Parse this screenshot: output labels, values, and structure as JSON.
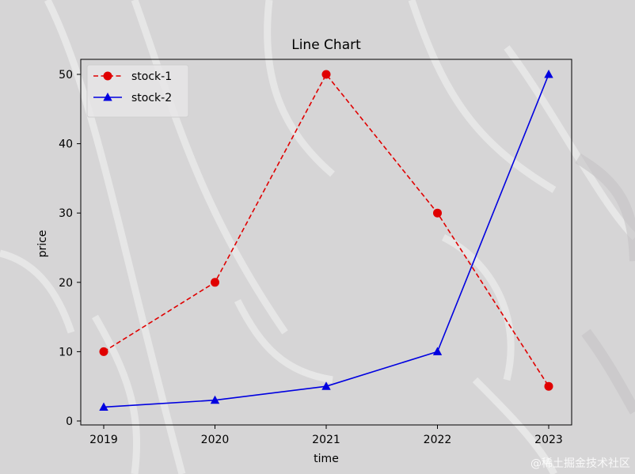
{
  "chart_data": {
    "type": "line",
    "title": "Line Chart",
    "xlabel": "time",
    "ylabel": "price",
    "categories": [
      "2019",
      "2020",
      "2021",
      "2022",
      "2023"
    ],
    "yticks": [
      0,
      10,
      20,
      30,
      40,
      50
    ],
    "ylim": [
      0,
      52
    ],
    "grid": false,
    "legend_position": "top-left",
    "series": [
      {
        "name": "stock-1",
        "values": [
          10,
          20,
          50,
          30,
          5
        ],
        "color": "#e00000",
        "linestyle": "dashed",
        "marker": "circle"
      },
      {
        "name": "stock-2",
        "values": [
          2,
          3,
          5,
          10,
          50
        ],
        "color": "#0000e0",
        "linestyle": "solid",
        "marker": "triangle"
      }
    ]
  },
  "watermark": "@稀土掘金技术社区"
}
